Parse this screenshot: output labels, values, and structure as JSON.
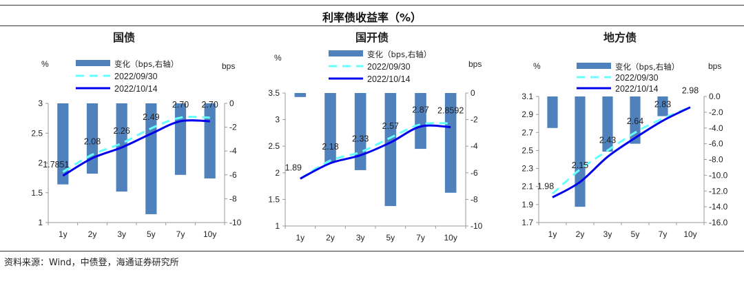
{
  "title": "利率债收益率（%）",
  "source": "资料来源：Wind，中债登，海通证券研究所",
  "colors": {
    "bar": "#4f81bd",
    "old_line": "#66ffff",
    "new_line": "#0000ee"
  },
  "chart_data": [
    {
      "type": "bar+line",
      "title": "国债",
      "left_unit": "%",
      "right_unit": "bps",
      "categories": [
        "1y",
        "2y",
        "3y",
        "5y",
        "7y",
        "10y"
      ],
      "ylim_left": [
        1,
        3
      ],
      "yticks_left": [
        "1",
        "1.5",
        "2",
        "2.5",
        "3"
      ],
      "ylim_right": [
        -10,
        0
      ],
      "yticks_right": [
        "-10",
        "-8",
        "-6",
        "-4",
        "-2",
        "0"
      ],
      "series": [
        {
          "name": "变化（bps,右轴）",
          "axis": "right",
          "kind": "bar",
          "values": [
            -6.8,
            -5.9,
            -7.4,
            -9.3,
            -6.0,
            -6.3
          ]
        },
        {
          "name": "2022/09/30",
          "axis": "left",
          "kind": "dashed-line",
          "values": [
            1.85,
            2.14,
            2.33,
            2.58,
            2.76,
            2.76
          ]
        },
        {
          "name": "2022/10/14",
          "axis": "left",
          "kind": "line",
          "values": [
            1.7851,
            2.08,
            2.26,
            2.49,
            2.7,
            2.7
          ]
        }
      ],
      "data_labels": [
        "1.7851",
        "2.08",
        "2.26",
        "2.49",
        "2.70",
        "2.70"
      ]
    },
    {
      "type": "bar+line",
      "title": "国开债",
      "left_unit": "%",
      "right_unit": "bps",
      "categories": [
        "1y",
        "2y",
        "3y",
        "5y",
        "7y",
        "10y"
      ],
      "ylim_left": [
        1,
        3.5
      ],
      "yticks_left": [
        "1",
        "1.5",
        "2",
        "2.5",
        "3",
        "3.5"
      ],
      "ylim_right": [
        -10,
        0
      ],
      "yticks_right": [
        "-10",
        "-8",
        "-6",
        "-4",
        "-2",
        "0"
      ],
      "series": [
        {
          "name": "变化（bps,右轴）",
          "axis": "right",
          "kind": "bar",
          "values": [
            -0.3,
            -5.2,
            -5.8,
            -8.5,
            -4.2,
            -7.5
          ]
        },
        {
          "name": "2022/09/30",
          "axis": "left",
          "kind": "dashed-line",
          "values": [
            1.89,
            2.23,
            2.39,
            2.66,
            2.91,
            2.93
          ]
        },
        {
          "name": "2022/10/14",
          "axis": "left",
          "kind": "line",
          "values": [
            1.89,
            2.18,
            2.33,
            2.57,
            2.87,
            2.8592
          ]
        }
      ],
      "data_labels": [
        "1.89",
        "2.18",
        "2.33",
        "2.57",
        "2.87",
        "2.8592"
      ]
    },
    {
      "type": "bar+line",
      "title": "地方债",
      "left_unit": "%",
      "right_unit": "bps",
      "categories": [
        "1y",
        "2y",
        "3y",
        "5y",
        "7y",
        "10y"
      ],
      "ylim_left": [
        1.7,
        3.1
      ],
      "yticks_left": [
        "1.7",
        "1.9",
        "2.1",
        "2.3",
        "2.5",
        "2.7",
        "2.9",
        "3.1"
      ],
      "ylim_right": [
        -16,
        0
      ],
      "yticks_right": [
        "-16.0",
        "-14.0",
        "-12.0",
        "-10.0",
        "-8.0",
        "-6.0",
        "-4.0",
        "-2.0",
        "0.0"
      ],
      "series": [
        {
          "name": "变化（bps,右轴）",
          "axis": "right",
          "kind": "bar",
          "values": [
            -4.0,
            -14.0,
            -7.0,
            -6.0,
            -2.5,
            0
          ]
        },
        {
          "name": "2022/09/30",
          "axis": "left",
          "kind": "dashed-line",
          "values": [
            2.02,
            2.29,
            2.5,
            2.7,
            2.855,
            2.98
          ]
        },
        {
          "name": "2022/10/14",
          "axis": "left",
          "kind": "line",
          "values": [
            1.98,
            2.15,
            2.43,
            2.64,
            2.83,
            2.98
          ]
        }
      ],
      "data_labels": [
        "1.98",
        "2.15",
        "2.43",
        "2.64",
        "2.83",
        "2.98"
      ]
    }
  ]
}
